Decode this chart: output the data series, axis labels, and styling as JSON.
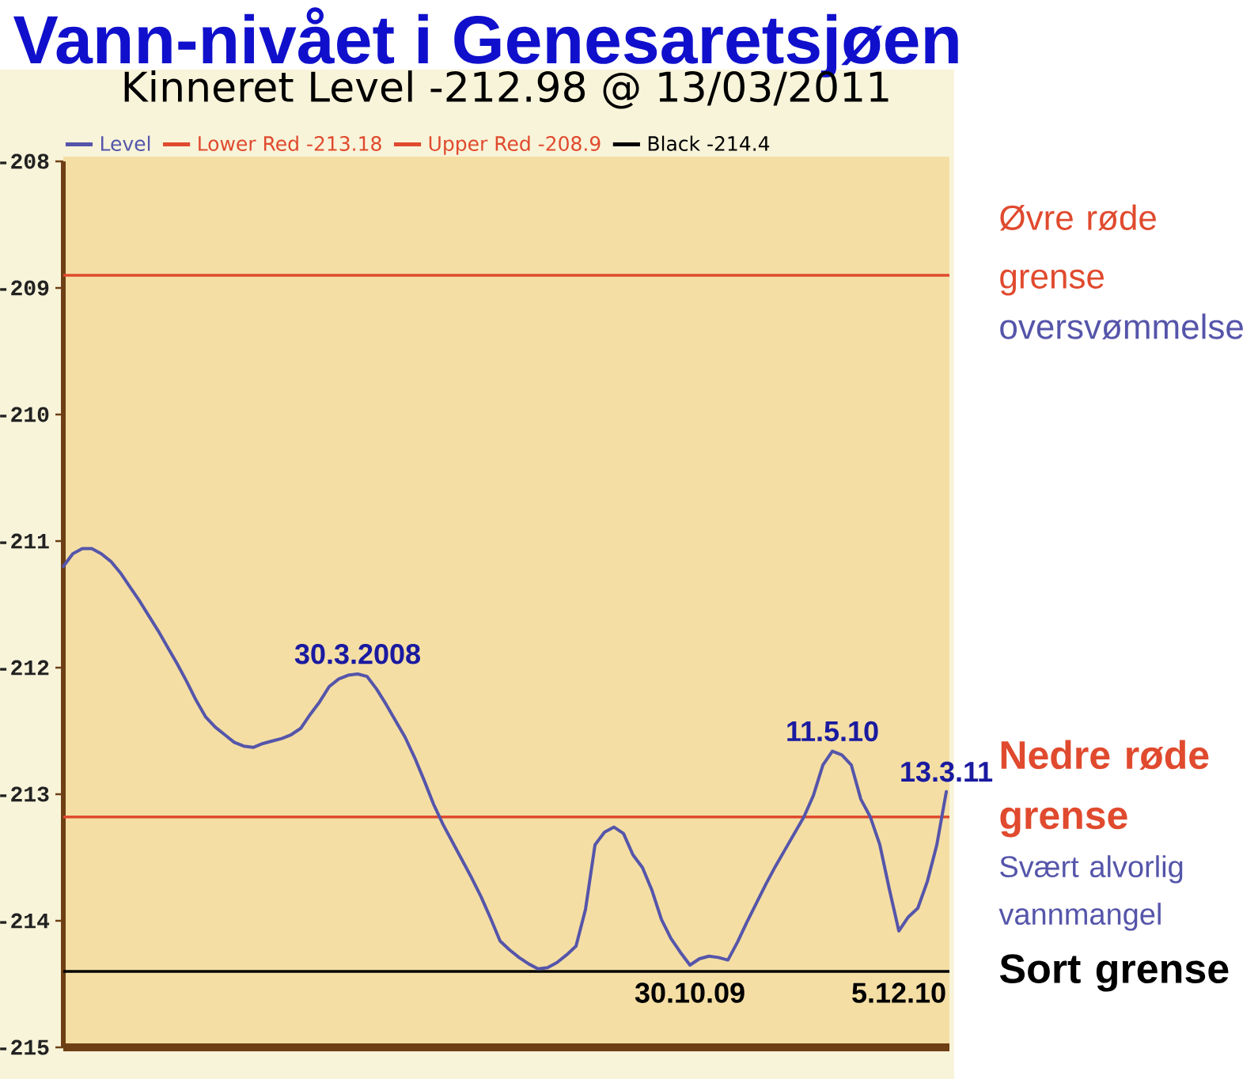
{
  "chart_data": {
    "type": "line",
    "title": "Vann-nivået i Genesaretsjøen",
    "subtitle": "Kinneret Level -212.98 @ 13/03/2011",
    "categories": [
      null,
      null,
      null,
      null,
      null,
      null,
      null,
      null,
      null,
      null,
      null,
      null,
      null,
      null,
      null,
      null,
      null,
      null,
      null,
      null,
      null,
      null,
      null,
      null,
      null,
      null,
      null,
      null,
      null,
      null,
      null,
      null,
      null,
      null,
      null,
      null,
      null,
      null,
      null,
      null,
      null,
      null,
      null,
      null,
      null,
      null,
      null,
      null,
      null,
      null,
      null,
      null,
      null,
      null,
      null,
      null,
      null,
      null,
      null,
      null,
      null,
      null,
      null,
      null,
      null,
      null,
      null,
      null,
      null,
      null,
      null,
      null,
      null,
      null,
      null,
      null,
      null,
      null,
      null,
      null,
      null,
      null,
      null,
      null,
      null,
      null,
      null,
      null,
      null,
      null,
      null,
      null,
      null,
      null
    ],
    "series": [
      {
        "name": "Level",
        "color": "#5555aa",
        "values": [
          -211.2,
          -211.1,
          -211.06,
          -211.06,
          -211.1,
          -211.16,
          -211.25,
          -211.36,
          -211.47,
          -211.59,
          -211.71,
          -211.84,
          -211.97,
          -212.11,
          -212.26,
          -212.39,
          -212.47,
          -212.53,
          -212.59,
          -212.62,
          -212.63,
          -212.6,
          -212.58,
          -212.56,
          -212.53,
          -212.48,
          -212.37,
          -212.27,
          -212.15,
          -212.09,
          -212.06,
          -212.05,
          -212.07,
          -212.17,
          -212.29,
          -212.42,
          -212.55,
          -212.71,
          -212.89,
          -213.08,
          -213.24,
          -213.38,
          -213.52,
          -213.66,
          -213.81,
          -213.98,
          -214.16,
          -214.23,
          -214.29,
          -214.34,
          -214.38,
          -214.37,
          -214.33,
          -214.27,
          -214.2,
          -213.91,
          -213.4,
          -213.3,
          -213.26,
          -213.31,
          -213.48,
          -213.58,
          -213.76,
          -213.99,
          -214.14,
          -214.25,
          -214.35,
          -214.3,
          -214.28,
          -214.29,
          -214.31,
          -214.17,
          -214.01,
          -213.86,
          -213.71,
          -213.57,
          -213.44,
          -213.31,
          -213.18,
          -213.01,
          -212.77,
          -212.66,
          -212.69,
          -212.77,
          -213.04,
          -213.18,
          -213.4,
          -213.75,
          -214.08,
          -213.97,
          -213.9,
          -213.69,
          -213.4,
          -212.98
        ]
      }
    ],
    "ylim": [
      -215,
      -208
    ],
    "yticks": [
      -215,
      -214,
      -213,
      -212,
      -211,
      -210,
      -209,
      -208
    ],
    "tick_labels": "y",
    "legend": "top left",
    "ref_lines": [
      {
        "axis": "y",
        "value": -213.18,
        "label": "Lower Red -213.18",
        "color": "#e04a2e"
      },
      {
        "axis": "y",
        "value": -208.9,
        "label": "Upper Red -208.9",
        "color": "#e04a2e"
      },
      {
        "axis": "y",
        "value": -214.4,
        "label": "Black -214.4",
        "color": "#000000"
      }
    ],
    "annotations": [
      {
        "text": "30.3.2008",
        "y": -212.05
      },
      {
        "text": "30.10.09",
        "y": -214.35
      },
      {
        "text": "11.5.10",
        "y": -212.66
      },
      {
        "text": "5.12.10",
        "y": -214.08
      },
      {
        "text": "13.3.11",
        "y": -212.98
      },
      "Øvre røde grense",
      "oversvømmelse",
      "Nedre røde grense",
      "Svært alvorlig vannmangel",
      "Sort grense"
    ]
  }
}
